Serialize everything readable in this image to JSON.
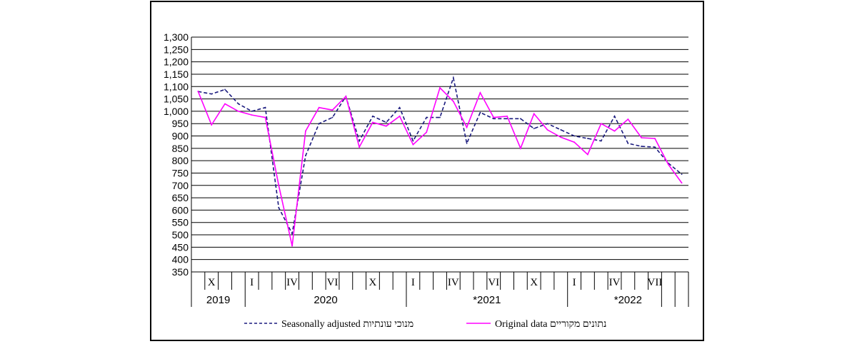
{
  "chart_data": {
    "type": "line",
    "ylim": [
      350,
      1300
    ],
    "y_ticks": [
      "350",
      "400",
      "450",
      "500",
      "550",
      "600",
      "650",
      "700",
      "750",
      "800",
      "850",
      "900",
      "950",
      "1,000",
      "1,050",
      "1,100",
      "1,150",
      "1,200",
      "1,250",
      "1,300"
    ],
    "month_labels": [
      {
        "index": 1,
        "label": "X"
      },
      {
        "index": 4,
        "label": "I"
      },
      {
        "index": 7,
        "label": "IV"
      },
      {
        "index": 10,
        "label": "VI"
      },
      {
        "index": 13,
        "label": "X"
      },
      {
        "index": 16,
        "label": "I"
      },
      {
        "index": 19,
        "label": "IV"
      },
      {
        "index": 22,
        "label": "VI"
      },
      {
        "index": 25,
        "label": "X"
      },
      {
        "index": 28,
        "label": "I"
      },
      {
        "index": 31,
        "label": "IV"
      },
      {
        "index": 34,
        "label": "VII"
      }
    ],
    "years": [
      {
        "label": "2019",
        "start": 0,
        "end": 4
      },
      {
        "label": "2020",
        "start": 4,
        "end": 16
      },
      {
        "label": "*2021",
        "start": 16,
        "end": 28
      },
      {
        "label": "*2022",
        "start": 28,
        "end": 37
      }
    ],
    "series": [
      {
        "name": "Seasonally adjusted",
        "name_he": "מנוכי עונתיות",
        "color": "#1a1a7e",
        "style": "dashed",
        "values": [
          1080,
          1070,
          1088,
          1030,
          1000,
          1015,
          610,
          505,
          820,
          950,
          975,
          1060,
          880,
          980,
          955,
          1015,
          880,
          975,
          975,
          1135,
          870,
          995,
          970,
          970,
          970,
          930,
          950,
          925,
          900,
          890,
          880,
          980,
          870,
          858,
          855,
          790,
          745
        ]
      },
      {
        "name": "Original data",
        "name_he": "נתונים מקוריים",
        "color": "#ff00ff",
        "style": "solid",
        "values": [
          1080,
          945,
          1030,
          1000,
          985,
          975,
          700,
          455,
          920,
          1015,
          1005,
          1060,
          855,
          955,
          940,
          980,
          865,
          915,
          1095,
          1040,
          935,
          1075,
          975,
          980,
          850,
          990,
          925,
          895,
          875,
          825,
          950,
          920,
          968,
          893,
          890,
          785,
          710
        ]
      }
    ]
  }
}
